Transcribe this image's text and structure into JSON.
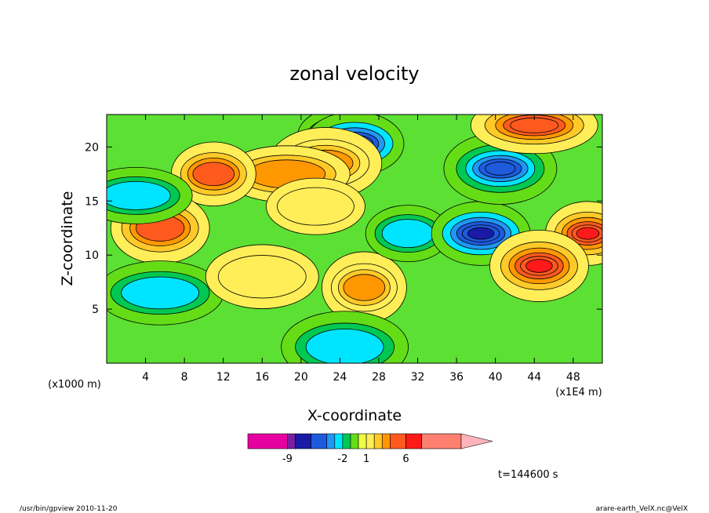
{
  "chart_data": {
    "type": "heatmap",
    "title": "zonal velocity",
    "xlabel": "X-coordinate",
    "ylabel": "Z-coordinate",
    "x_unit": "(x1E4 m)",
    "y_unit": "(x1000 m)",
    "xlim": [
      0,
      51
    ],
    "ylim": [
      0,
      23
    ],
    "x_ticks": [
      4,
      8,
      12,
      16,
      20,
      24,
      28,
      32,
      36,
      40,
      44,
      48
    ],
    "y_ticks": [
      5,
      10,
      15,
      20
    ],
    "grid": false,
    "colorbar": {
      "levels": [
        -14,
        -9,
        -8,
        -6,
        -4,
        -3,
        -2,
        -1,
        0,
        1,
        2,
        3,
        4,
        6,
        8,
        14
      ],
      "colors": [
        "#e5009f",
        "#7b1fa2",
        "#1a1aa6",
        "#1e5adc",
        "#2196f3",
        "#00e5ff",
        "#00c853",
        "#64dd17",
        "#eeff41",
        "#ffee58",
        "#ffca28",
        "#ff9800",
        "#ff5a1e",
        "#ff1a1a",
        "#ff8070",
        "#ffb3ba"
      ],
      "tick_labels": [
        {
          "value": -9,
          "label": "-9"
        },
        {
          "value": -2,
          "label": "-2"
        },
        {
          "value": 1,
          "label": "1"
        },
        {
          "value": 6,
          "label": "6"
        }
      ]
    },
    "field_features": [
      {
        "x": 24,
        "z": 21,
        "value": -3
      },
      {
        "x": 25.5,
        "z": 20.3,
        "value": -7
      },
      {
        "x": 22.5,
        "z": 18.5,
        "value": 3.5
      },
      {
        "x": 18.5,
        "z": 17.5,
        "value": 3
      },
      {
        "x": 11,
        "z": 17.5,
        "value": 4
      },
      {
        "x": 5.5,
        "z": 12.5,
        "value": 4
      },
      {
        "x": 3,
        "z": 15.5,
        "value": -2.5
      },
      {
        "x": 5.5,
        "z": 6.5,
        "value": -2.5
      },
      {
        "x": 26.5,
        "z": 7,
        "value": 3.5
      },
      {
        "x": 21.5,
        "z": 14.5,
        "value": 1
      },
      {
        "x": 16,
        "z": 8,
        "value": 1
      },
      {
        "x": 24.5,
        "z": 1.5,
        "value": -2.5
      },
      {
        "x": 31,
        "z": 12,
        "value": -3
      },
      {
        "x": 38.5,
        "z": 12,
        "value": -7
      },
      {
        "x": 40.5,
        "z": 18,
        "value": -6
      },
      {
        "x": 44,
        "z": 22,
        "value": 5
      },
      {
        "x": 49.5,
        "z": 12,
        "value": 6
      },
      {
        "x": 44.5,
        "z": 9,
        "value": 7
      }
    ]
  },
  "time_label": "t=144600 s",
  "footer_left": "/usr/bin/gpview   2010-11-20",
  "footer_right": "arare-earth_VelX.nc@VelX"
}
